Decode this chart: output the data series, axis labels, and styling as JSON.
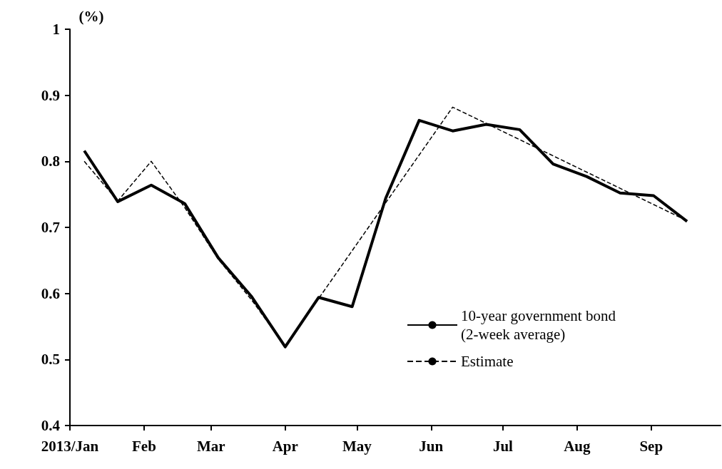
{
  "chart_data": {
    "type": "line",
    "ylabel": "(%)",
    "xlim": [
      "2013-01-01",
      "2013-09-30"
    ],
    "xticks": [
      {
        "value": "2013-01-01",
        "label": "2013/Jan"
      },
      {
        "value": "2013-02-01",
        "label": "Feb"
      },
      {
        "value": "2013-03-01",
        "label": "Mar"
      },
      {
        "value": "2013-04-01",
        "label": "Apr"
      },
      {
        "value": "2013-05-01",
        "label": "May"
      },
      {
        "value": "2013-06-01",
        "label": "Jun"
      },
      {
        "value": "2013-07-01",
        "label": "Jul"
      },
      {
        "value": "2013-08-01",
        "label": "Aug"
      },
      {
        "value": "2013-09-01",
        "label": "Sep"
      }
    ],
    "ylim": [
      0.4,
      1
    ],
    "yticks": [
      0.4,
      0.5,
      0.6,
      0.7,
      0.8,
      0.9,
      1
    ],
    "grid": false,
    "legend": "right",
    "marker": "none",
    "series": [
      {
        "name": "10-year government bond (2-week average)",
        "color": "#000000",
        "line_style": "solid",
        "x": [
          "2013-01-07",
          "2013-01-21",
          "2013-02-04",
          "2013-02-18",
          "2013-03-04",
          "2013-03-18",
          "2013-04-01",
          "2013-04-15",
          "2013-04-29",
          "2013-05-13",
          "2013-05-27",
          "2013-06-10",
          "2013-06-24",
          "2013-07-08",
          "2013-07-22",
          "2013-08-05",
          "2013-08-19",
          "2013-09-02",
          "2013-09-16"
        ],
        "values": [
          0.816,
          0.739,
          0.764,
          0.736,
          0.654,
          0.595,
          0.519,
          0.594,
          0.58,
          0.744,
          0.862,
          0.846,
          0.856,
          0.848,
          0.796,
          0.777,
          0.752,
          0.748,
          0.709
        ]
      },
      {
        "name": "Estimate",
        "color": "#000000",
        "line_style": "dashed",
        "x": [
          "2013-01-07",
          "2013-01-21",
          "2013-02-04",
          "2013-02-18",
          "2013-03-04",
          "2013-03-18",
          "2013-04-01",
          "2013-06-10",
          "2013-09-16"
        ],
        "values": [
          0.8,
          0.74,
          0.8,
          0.73,
          0.652,
          0.59,
          0.52,
          0.882,
          0.71
        ]
      }
    ]
  }
}
